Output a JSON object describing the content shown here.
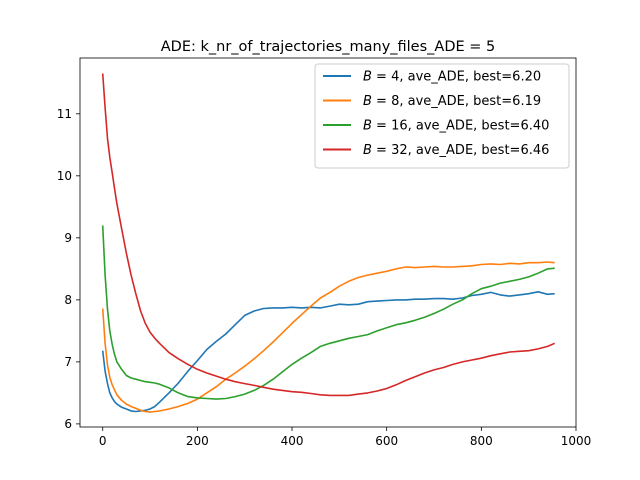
{
  "chart_data": {
    "type": "line",
    "title": "ADE: k_nr_of_trajectories_many_files_ADE = 5",
    "xlabel": "",
    "ylabel": "",
    "xlim": [
      -48,
      1000
    ],
    "ylim": [
      5.95,
      11.9
    ],
    "xticks": [
      0,
      200,
      400,
      600,
      800,
      1000
    ],
    "yticks": [
      6,
      7,
      8,
      9,
      10,
      11
    ],
    "grid": false,
    "legend_position": "top-right",
    "series": [
      {
        "name": "B = 4, ave_ADE, best=6.20",
        "legend_var": "B",
        "legend_rest": " = 4, ave_ADE, best=6.20",
        "color": "#1f77b4",
        "x": [
          0,
          5,
          10,
          15,
          20,
          25,
          30,
          40,
          50,
          60,
          70,
          80,
          90,
          100,
          110,
          120,
          140,
          160,
          180,
          200,
          220,
          240,
          260,
          280,
          300,
          320,
          340,
          360,
          380,
          400,
          420,
          440,
          460,
          480,
          500,
          520,
          540,
          560,
          580,
          600,
          620,
          640,
          660,
          680,
          700,
          720,
          740,
          760,
          780,
          800,
          820,
          840,
          860,
          880,
          900,
          920,
          940,
          955
        ],
        "y": [
          7.18,
          6.85,
          6.65,
          6.5,
          6.42,
          6.36,
          6.32,
          6.27,
          6.24,
          6.21,
          6.2,
          6.21,
          6.22,
          6.24,
          6.28,
          6.35,
          6.5,
          6.66,
          6.85,
          7.02,
          7.2,
          7.33,
          7.45,
          7.6,
          7.75,
          7.82,
          7.86,
          7.87,
          7.87,
          7.88,
          7.87,
          7.88,
          7.87,
          7.9,
          7.93,
          7.92,
          7.93,
          7.97,
          7.98,
          7.99,
          8.0,
          8.0,
          8.01,
          8.01,
          8.02,
          8.02,
          8.01,
          8.03,
          8.07,
          8.09,
          8.12,
          8.08,
          8.06,
          8.08,
          8.1,
          8.13,
          8.09,
          8.1
        ]
      },
      {
        "name": "B = 8, ave_ADE, best=6.19",
        "legend_var": "B",
        "legend_rest": " = 8, ave_ADE, best=6.19",
        "color": "#ff7f0e",
        "x": [
          0,
          5,
          10,
          15,
          20,
          25,
          30,
          40,
          50,
          60,
          70,
          80,
          90,
          100,
          110,
          120,
          140,
          160,
          180,
          200,
          220,
          240,
          260,
          280,
          300,
          320,
          340,
          360,
          380,
          400,
          420,
          440,
          460,
          480,
          500,
          520,
          540,
          560,
          580,
          600,
          620,
          640,
          660,
          680,
          700,
          720,
          740,
          760,
          780,
          800,
          820,
          840,
          860,
          880,
          900,
          920,
          940,
          955
        ],
        "y": [
          7.86,
          7.3,
          6.95,
          6.75,
          6.63,
          6.55,
          6.47,
          6.38,
          6.32,
          6.28,
          6.25,
          6.22,
          6.2,
          6.19,
          6.2,
          6.21,
          6.24,
          6.28,
          6.33,
          6.4,
          6.5,
          6.6,
          6.72,
          6.82,
          6.93,
          7.05,
          7.18,
          7.32,
          7.47,
          7.62,
          7.76,
          7.9,
          8.03,
          8.12,
          8.22,
          8.3,
          8.36,
          8.4,
          8.43,
          8.46,
          8.5,
          8.53,
          8.52,
          8.53,
          8.54,
          8.53,
          8.53,
          8.54,
          8.55,
          8.57,
          8.58,
          8.57,
          8.59,
          8.58,
          8.6,
          8.6,
          8.61,
          8.6
        ]
      },
      {
        "name": "B = 16, ave_ADE, best=6.40",
        "legend_var": "B",
        "legend_rest": " = 16, ave_ADE, best=6.40",
        "color": "#2ca02c",
        "x": [
          0,
          5,
          10,
          15,
          20,
          25,
          30,
          40,
          50,
          60,
          70,
          80,
          90,
          100,
          110,
          120,
          140,
          160,
          180,
          200,
          220,
          240,
          260,
          280,
          300,
          320,
          340,
          360,
          380,
          400,
          420,
          440,
          460,
          480,
          500,
          520,
          540,
          560,
          580,
          600,
          620,
          640,
          660,
          680,
          700,
          720,
          740,
          760,
          780,
          800,
          820,
          840,
          860,
          880,
          900,
          920,
          940,
          955
        ],
        "y": [
          9.2,
          8.4,
          7.85,
          7.5,
          7.28,
          7.12,
          7.0,
          6.88,
          6.78,
          6.74,
          6.72,
          6.7,
          6.68,
          6.67,
          6.66,
          6.64,
          6.58,
          6.5,
          6.44,
          6.42,
          6.41,
          6.4,
          6.41,
          6.44,
          6.48,
          6.54,
          6.62,
          6.72,
          6.84,
          6.96,
          7.06,
          7.15,
          7.25,
          7.3,
          7.34,
          7.38,
          7.41,
          7.44,
          7.5,
          7.55,
          7.6,
          7.63,
          7.67,
          7.72,
          7.78,
          7.85,
          7.93,
          8.0,
          8.1,
          8.18,
          8.22,
          8.27,
          8.3,
          8.33,
          8.37,
          8.43,
          8.5,
          8.51
        ]
      },
      {
        "name": "B = 32, ave_ADE, best=6.46",
        "legend_var": "B",
        "legend_rest": " = 32, ave_ADE, best=6.46",
        "color": "#d62728",
        "x": [
          0,
          5,
          10,
          15,
          20,
          25,
          30,
          40,
          50,
          60,
          70,
          80,
          90,
          100,
          110,
          120,
          140,
          160,
          180,
          200,
          220,
          240,
          260,
          280,
          300,
          320,
          340,
          360,
          380,
          400,
          420,
          440,
          460,
          480,
          500,
          520,
          540,
          560,
          580,
          600,
          620,
          640,
          660,
          680,
          700,
          720,
          740,
          760,
          780,
          800,
          820,
          840,
          860,
          880,
          900,
          920,
          940,
          955
        ],
        "y": [
          11.65,
          11.1,
          10.6,
          10.3,
          10.05,
          9.8,
          9.55,
          9.15,
          8.75,
          8.4,
          8.1,
          7.82,
          7.62,
          7.48,
          7.38,
          7.3,
          7.15,
          7.05,
          6.96,
          6.88,
          6.82,
          6.77,
          6.72,
          6.68,
          6.65,
          6.62,
          6.59,
          6.56,
          6.54,
          6.52,
          6.51,
          6.49,
          6.47,
          6.46,
          6.46,
          6.46,
          6.48,
          6.5,
          6.53,
          6.57,
          6.63,
          6.7,
          6.76,
          6.82,
          6.87,
          6.91,
          6.96,
          7.0,
          7.03,
          7.06,
          7.1,
          7.13,
          7.16,
          7.17,
          7.18,
          7.21,
          7.25,
          7.3
        ]
      }
    ]
  }
}
